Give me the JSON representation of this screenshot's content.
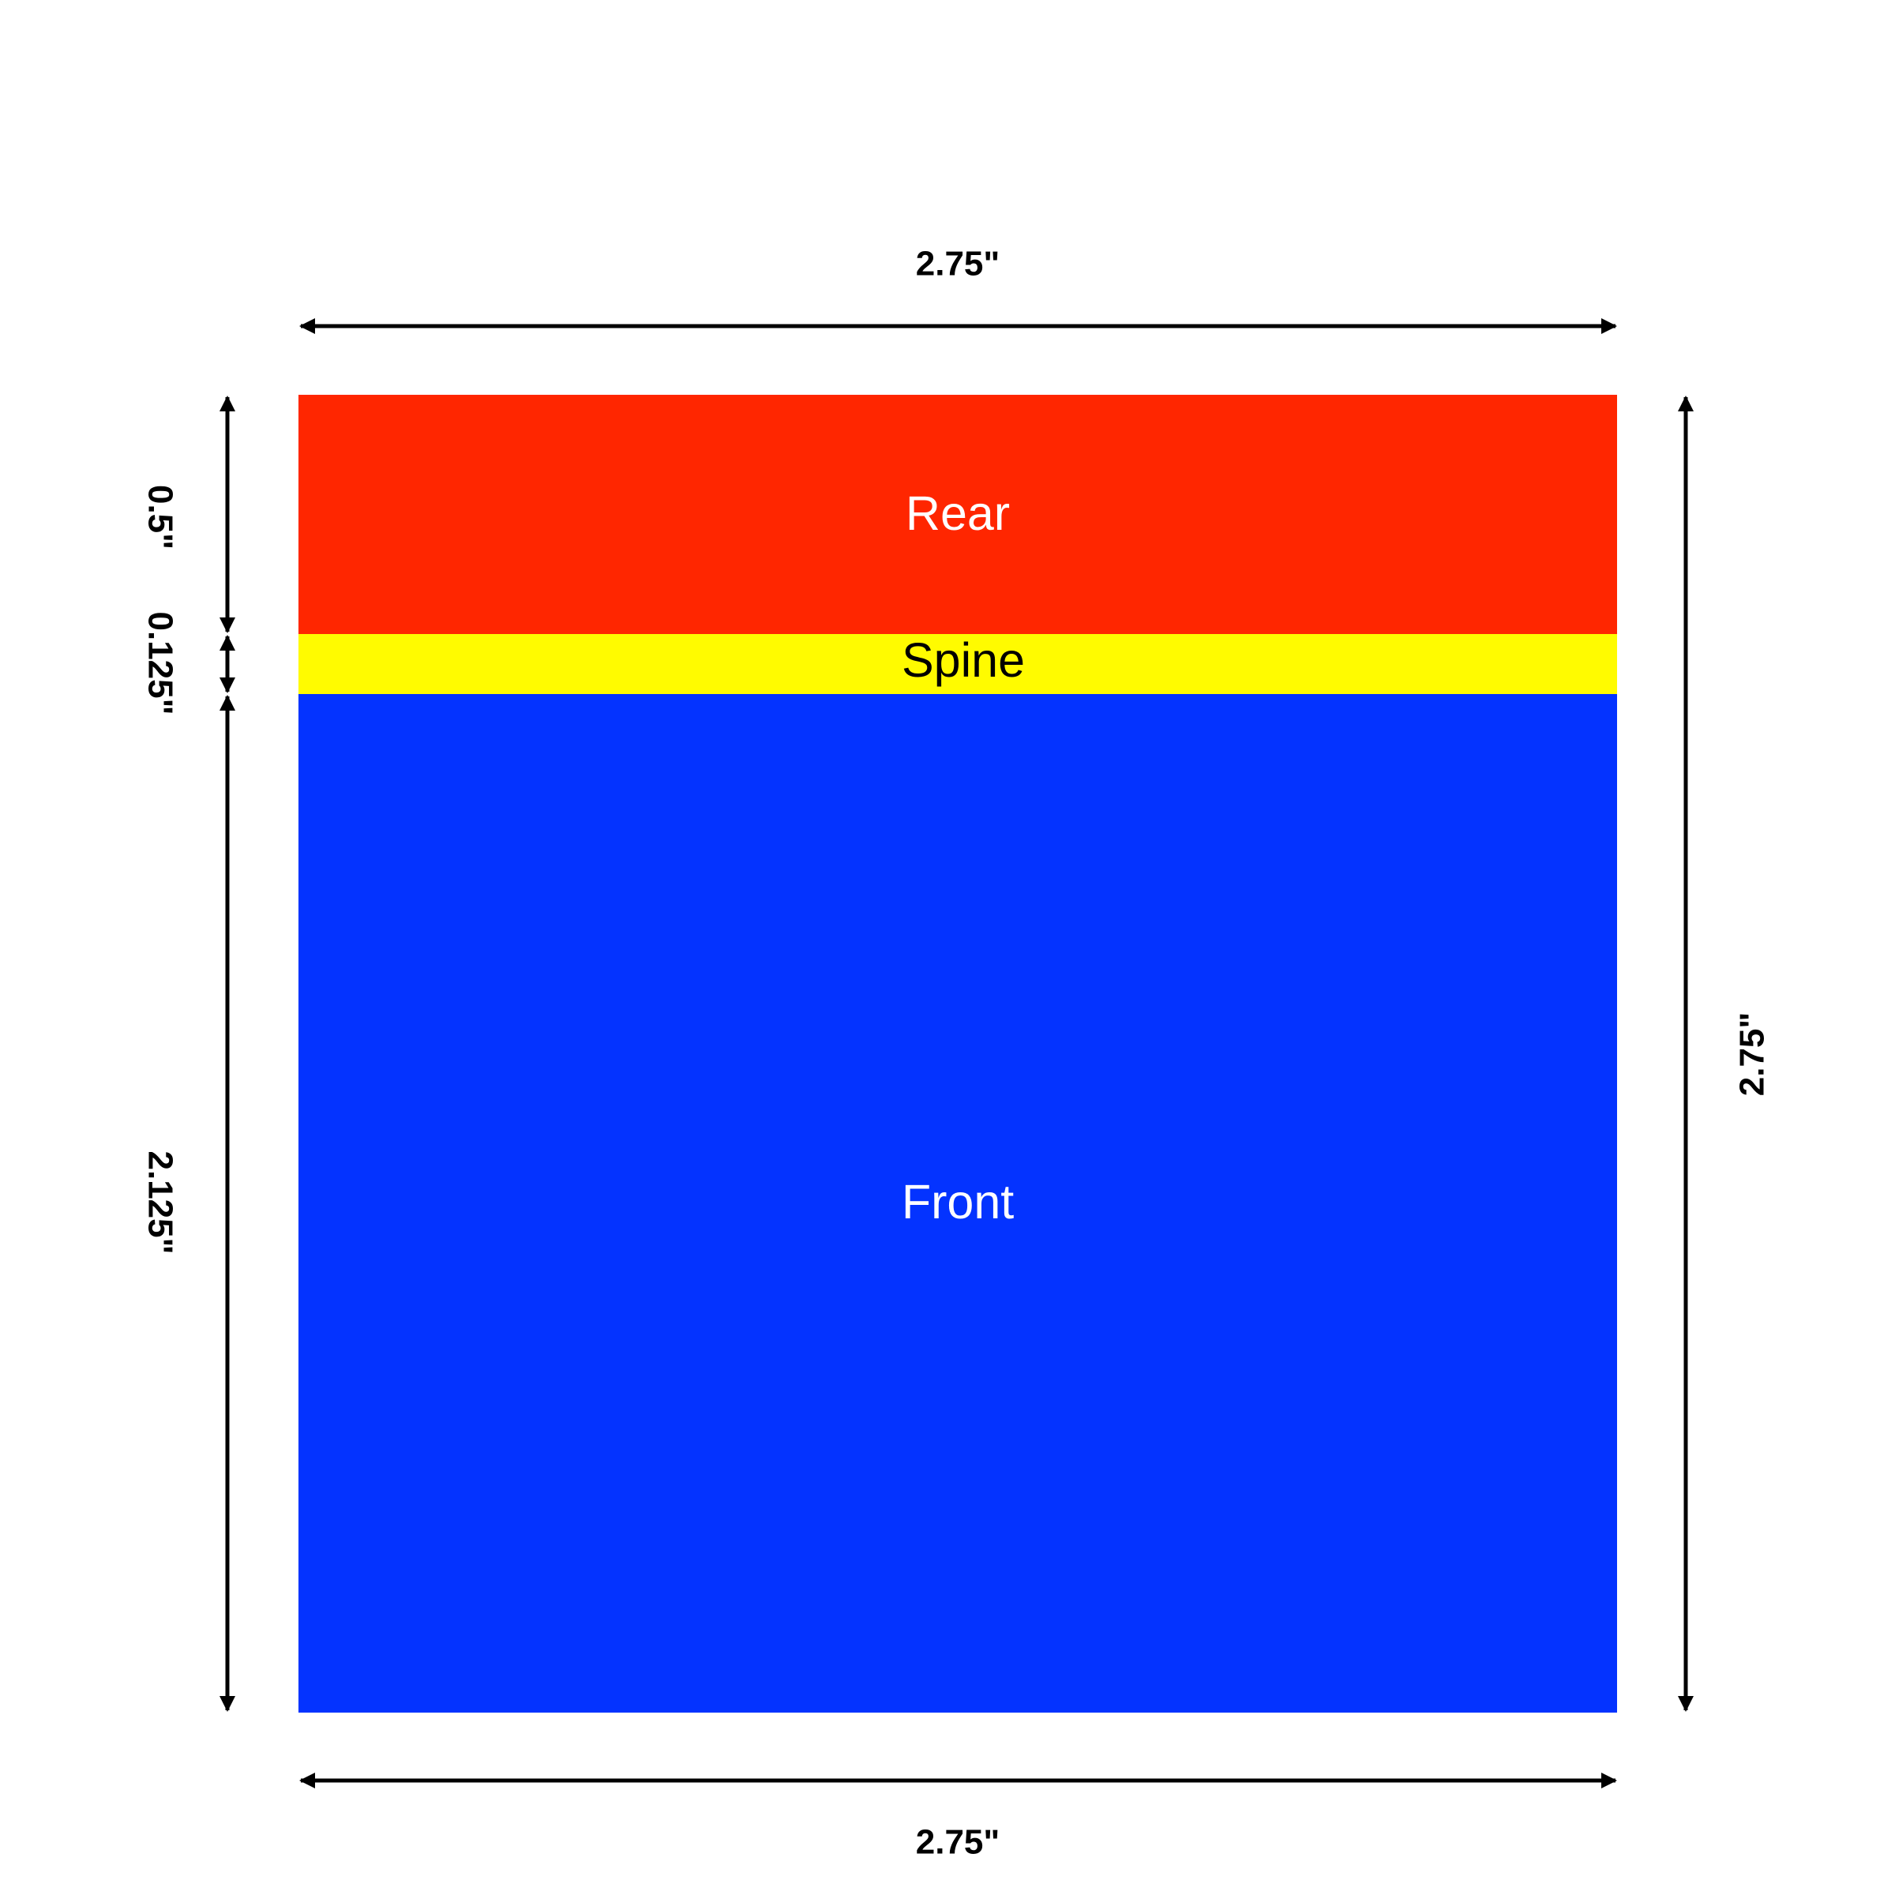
{
  "panels": [
    {
      "id": "rear",
      "label": "Rear",
      "color": "#ff2600",
      "text_color": "#ffffff"
    },
    {
      "id": "spine",
      "label": "Spine",
      "color": "#fffb00",
      "text_color": "#000000"
    },
    {
      "id": "front",
      "label": "Front",
      "color": "#0433ff",
      "text_color": "#ffffff"
    }
  ],
  "dimensions": {
    "top_width": "2.75\"",
    "bottom_width": "2.75\"",
    "right_height": "2.75\"",
    "rear_height": "0.5\"",
    "spine_height": "0.125\"",
    "front_height": "2.125\""
  },
  "colors": {
    "line": "#000000",
    "background": "#ffffff"
  }
}
